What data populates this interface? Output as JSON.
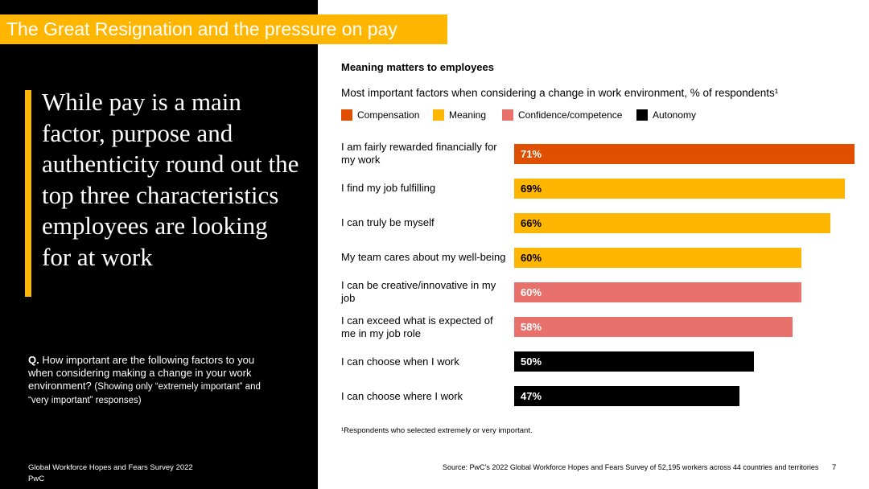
{
  "slide": {
    "banner": "The Great Resignation and the pressure on pay",
    "headline": "While pay is a main factor, purpose and authenticity round out the top three characteristics employees are looking for at work",
    "question_label": "Q.",
    "question": "How important are the following factors to you when considering making a change in your work environment?",
    "question_note": "(Showing only “extremely important” and “very important” responses)",
    "footer_left": [
      "Global Workforce Hopes and Fears Survey 2022",
      "PwC"
    ],
    "footnote": "¹Respondents who selected extremely or very important.",
    "source": "Source: PwC’s 2022 Global Workforce Hopes and Fears Survey of 52,195 workers across 44 countries and territories",
    "page_number": 7
  },
  "chart_data": {
    "type": "bar",
    "orientation": "horizontal",
    "title": "Meaning matters to employees",
    "subtitle": "Most important factors when considering a change in work environment, % of respondents¹",
    "categories": [
      "I am fairly rewarded financially for my work",
      "I find my job fulfilling",
      "I can truly be myself",
      "My team cares about my well-being",
      "I can be creative/innovative in my job",
      "I can exceed what is expected of me in my job role",
      "I can choose when I work",
      "I can choose where I work"
    ],
    "xlim": [
      0,
      71
    ],
    "series": [
      {
        "name": "Compensation",
        "color": "#e04f00",
        "label_color": "#ffffff",
        "values": [
          71,
          null,
          null,
          null,
          null,
          null,
          null,
          null
        ],
        "value_labels": [
          "71%",
          null,
          null,
          null,
          null,
          null,
          null,
          null
        ]
      },
      {
        "name": "Meaning",
        "color": "#ffb600",
        "label_color": "#000000",
        "values": [
          null,
          69,
          66,
          60,
          null,
          null,
          null,
          null
        ],
        "value_labels": [
          null,
          "69%",
          "66%",
          "60%",
          null,
          null,
          null,
          null
        ]
      },
      {
        "name": "Confidence/competence",
        "color": "#e8716b",
        "label_color": "#ffffff",
        "values": [
          null,
          null,
          null,
          null,
          60,
          58,
          null,
          null
        ],
        "value_labels": [
          null,
          null,
          null,
          null,
          "60%",
          "58%",
          null,
          null
        ]
      },
      {
        "name": "Autonomy",
        "color": "#000000",
        "label_color": "#ffffff",
        "values": [
          null,
          null,
          null,
          null,
          null,
          null,
          50,
          47
        ],
        "value_labels": [
          null,
          null,
          null,
          null,
          null,
          null,
          "50%",
          "47%"
        ]
      }
    ]
  }
}
